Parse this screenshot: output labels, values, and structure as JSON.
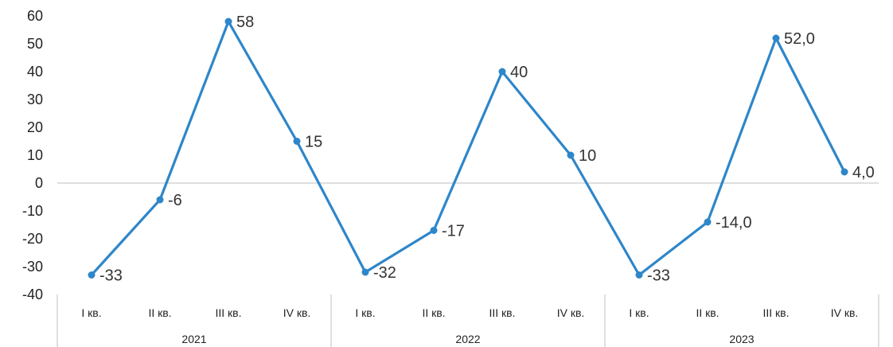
{
  "chart_data": {
    "type": "line",
    "title": "",
    "xlabel": "",
    "ylabel": "",
    "ylim": [
      -40,
      60
    ],
    "yticks": [
      "60",
      "50",
      "40",
      "30",
      "20",
      "10",
      "0",
      "-10",
      "-20",
      "-30",
      "-40"
    ],
    "groups": [
      {
        "label": "2021",
        "categories": [
          "I кв.",
          "II кв.",
          "III кв.",
          "IV кв."
        ]
      },
      {
        "label": "2022",
        "categories": [
          "I кв.",
          "II кв.",
          "III кв.",
          "IV кв."
        ]
      },
      {
        "label": "2023",
        "categories": [
          "I кв.",
          "II кв.",
          "III кв.",
          "IV кв."
        ]
      }
    ],
    "series": [
      {
        "values": [
          -33,
          -6,
          58,
          15,
          -32,
          -17,
          40,
          10,
          -33,
          -14,
          52,
          4
        ],
        "labels": [
          "-33",
          "-6",
          "58",
          "15",
          "-32",
          "-17",
          "40",
          "10",
          "-33",
          "-14,0",
          "52,0",
          "4,0"
        ],
        "color": "#2E86C9"
      }
    ],
    "grid": false,
    "legend": "none",
    "colors": {
      "line": "#2E86C9",
      "axis": "#BFBFBF",
      "text": "#222222"
    }
  }
}
